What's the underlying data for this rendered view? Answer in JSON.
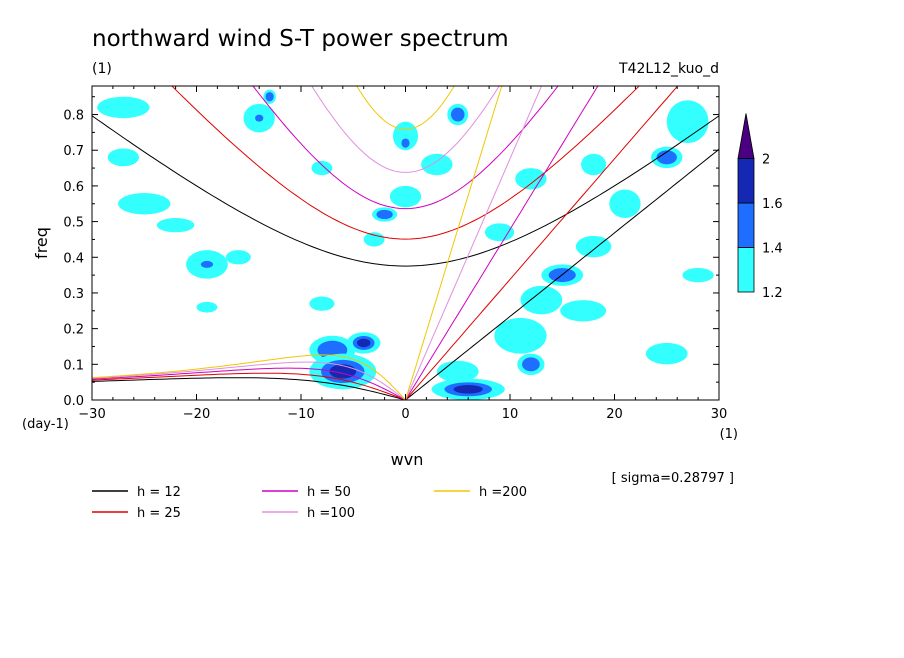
{
  "chart_data": {
    "type": "heatmap",
    "title": "northward wind S-T power spectrum",
    "subtitle_left": "(1)",
    "subtitle_right": "T42L12_kuo_d",
    "xlabel": "wvn",
    "ylabel": "freq",
    "x_unit": "(1)",
    "y_unit": "(day-1)",
    "xlim": [
      -30,
      30
    ],
    "ylim": [
      0,
      0.88
    ],
    "x_ticks": [
      -30,
      -20,
      -10,
      0,
      10,
      20,
      30
    ],
    "y_ticks": [
      0.0,
      0.1,
      0.2,
      0.3,
      0.4,
      0.5,
      0.6,
      0.7,
      0.8
    ],
    "sigma_label": "[ sigma=0.28797 ]",
    "colorbar": {
      "levels": [
        "1.2",
        "1.4",
        "1.6",
        "2"
      ],
      "colors": [
        "#33ffff",
        "#1e6eff",
        "#1428b4",
        "#4b0082"
      ],
      "extend": "max"
    },
    "legend": [
      {
        "label": "h = 12",
        "color": "#000000",
        "h": 12
      },
      {
        "label": "h = 25",
        "color": "#e00000",
        "h": 25
      },
      {
        "label": "h = 50",
        "color": "#d000c0",
        "h": 50
      },
      {
        "label": "h =100",
        "color": "#e090e0",
        "h": 100
      },
      {
        "label": "h =200",
        "color": "#f0c800",
        "h": 200
      }
    ],
    "blobs": [
      {
        "x": -6,
        "y": 0.08,
        "rx": 3.2,
        "ry": 0.05,
        "level": 3
      },
      {
        "x": -7,
        "y": 0.14,
        "rx": 2.2,
        "ry": 0.04,
        "level": 2
      },
      {
        "x": -4,
        "y": 0.16,
        "rx": 1.6,
        "ry": 0.03,
        "level": 3
      },
      {
        "x": 6,
        "y": 0.03,
        "rx": 3.5,
        "ry": 0.03,
        "level": 3
      },
      {
        "x": 5,
        "y": 0.08,
        "rx": 2.0,
        "ry": 0.03,
        "level": 1
      },
      {
        "x": 11,
        "y": 0.18,
        "rx": 2.5,
        "ry": 0.05,
        "level": 1
      },
      {
        "x": 12,
        "y": 0.1,
        "rx": 1.3,
        "ry": 0.03,
        "level": 2
      },
      {
        "x": 13,
        "y": 0.28,
        "rx": 2.0,
        "ry": 0.04,
        "level": 1
      },
      {
        "x": 15,
        "y": 0.35,
        "rx": 2.0,
        "ry": 0.03,
        "level": 2
      },
      {
        "x": 17,
        "y": 0.25,
        "rx": 2.2,
        "ry": 0.03,
        "level": 1
      },
      {
        "x": 18,
        "y": 0.43,
        "rx": 1.7,
        "ry": 0.03,
        "level": 1
      },
      {
        "x": 21,
        "y": 0.55,
        "rx": 1.5,
        "ry": 0.04,
        "level": 1
      },
      {
        "x": 25,
        "y": 0.13,
        "rx": 2.0,
        "ry": 0.03,
        "level": 1
      },
      {
        "x": 27,
        "y": 0.78,
        "rx": 2.0,
        "ry": 0.06,
        "level": 1
      },
      {
        "x": 25,
        "y": 0.68,
        "rx": 1.5,
        "ry": 0.03,
        "level": 2
      },
      {
        "x": -19,
        "y": 0.38,
        "rx": 2.0,
        "ry": 0.04,
        "level": 1
      },
      {
        "x": -19,
        "y": 0.38,
        "rx": 0.9,
        "ry": 0.015,
        "level": 2
      },
      {
        "x": -16,
        "y": 0.4,
        "rx": 1.2,
        "ry": 0.02,
        "level": 1
      },
      {
        "x": -22,
        "y": 0.49,
        "rx": 1.8,
        "ry": 0.02,
        "level": 1
      },
      {
        "x": -27,
        "y": 0.82,
        "rx": 2.5,
        "ry": 0.03,
        "level": 1
      },
      {
        "x": -25,
        "y": 0.55,
        "rx": 2.5,
        "ry": 0.03,
        "level": 1
      },
      {
        "x": -14,
        "y": 0.79,
        "rx": 1.5,
        "ry": 0.04,
        "level": 1
      },
      {
        "x": -14,
        "y": 0.79,
        "rx": 0.6,
        "ry": 0.015,
        "level": 2
      },
      {
        "x": -13,
        "y": 0.85,
        "rx": 0.6,
        "ry": 0.02,
        "level": 2
      },
      {
        "x": 0,
        "y": 0.74,
        "rx": 1.2,
        "ry": 0.04,
        "level": 1
      },
      {
        "x": 0,
        "y": 0.72,
        "rx": 0.6,
        "ry": 0.02,
        "level": 2
      },
      {
        "x": 3,
        "y": 0.66,
        "rx": 1.5,
        "ry": 0.03,
        "level": 1
      },
      {
        "x": 5,
        "y": 0.8,
        "rx": 1.0,
        "ry": 0.03,
        "level": 2
      },
      {
        "x": 0,
        "y": 0.57,
        "rx": 1.5,
        "ry": 0.03,
        "level": 1
      },
      {
        "x": -2,
        "y": 0.52,
        "rx": 1.2,
        "ry": 0.02,
        "level": 2
      },
      {
        "x": -3,
        "y": 0.45,
        "rx": 1.0,
        "ry": 0.02,
        "level": 1
      },
      {
        "x": 12,
        "y": 0.62,
        "rx": 1.5,
        "ry": 0.03,
        "level": 1
      },
      {
        "x": 18,
        "y": 0.66,
        "rx": 1.2,
        "ry": 0.03,
        "level": 1
      },
      {
        "x": -8,
        "y": 0.27,
        "rx": 1.2,
        "ry": 0.02,
        "level": 1
      },
      {
        "x": -19,
        "y": 0.26,
        "rx": 1.0,
        "ry": 0.015,
        "level": 1
      },
      {
        "x": 28,
        "y": 0.35,
        "rx": 1.5,
        "ry": 0.02,
        "level": 1
      },
      {
        "x": 9,
        "y": 0.47,
        "rx": 1.4,
        "ry": 0.025,
        "level": 1
      },
      {
        "x": -27,
        "y": 0.68,
        "rx": 1.5,
        "ry": 0.025,
        "level": 1
      },
      {
        "x": -8,
        "y": 0.65,
        "rx": 1.0,
        "ry": 0.02,
        "level": 1
      }
    ]
  }
}
